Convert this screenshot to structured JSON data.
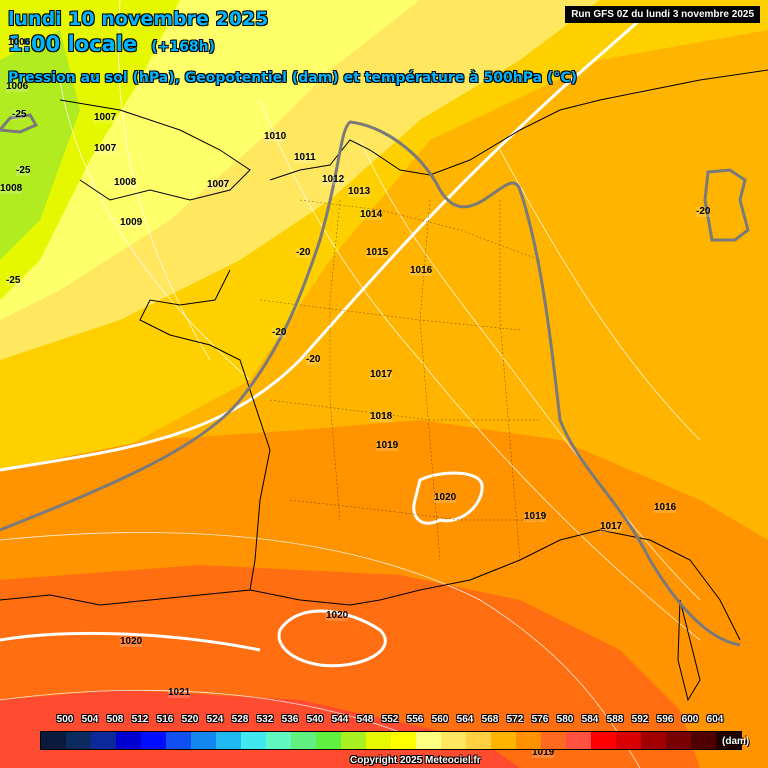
{
  "header": {
    "date_line": "lundi 10 novembre 2025",
    "time_line": "1:00 locale",
    "lead_time": "(+168h)",
    "subtitle": "Pression au sol (hPa), Geopotentiel (dam) et température à 500hPa (°C)",
    "run_info": "Run GFS 0Z du lundi 3 novembre 2025"
  },
  "pressure_labels": [
    "1006",
    "1006",
    "1007",
    "1008",
    "1008",
    "1009",
    "1007",
    "1010",
    "1011",
    "1012",
    "1013",
    "1014",
    "1015",
    "1016",
    "1017",
    "1018",
    "1019",
    "1020",
    "1019",
    "1017",
    "1016",
    "1020",
    "1020",
    "1021",
    "1019"
  ],
  "temperature_labels": [
    "-25",
    "-25",
    "-25",
    "-20",
    "-20",
    "-20",
    "-20"
  ],
  "colorbar": {
    "unit": "(dam)",
    "ticks": [
      "500",
      "504",
      "508",
      "512",
      "516",
      "520",
      "524",
      "528",
      "532",
      "536",
      "540",
      "544",
      "548",
      "552",
      "556",
      "560",
      "564",
      "568",
      "572",
      "576",
      "580",
      "584",
      "588",
      "592",
      "596",
      "600",
      "604"
    ],
    "colors": [
      "#0a1a3c",
      "#0a2a60",
      "#0a2a9c",
      "#0000d0",
      "#0010ff",
      "#1050f0",
      "#1488f0",
      "#20b8f0",
      "#40e8f0",
      "#60f8c0",
      "#60f080",
      "#60f040",
      "#a8f020",
      "#e8f800",
      "#ffff00",
      "#ffff80",
      "#ffe860",
      "#ffd040",
      "#ffb400",
      "#ff9000",
      "#ff6a20",
      "#ff5040",
      "#ff0000",
      "#d80000",
      "#a00000",
      "#780000",
      "#500000",
      "#200000"
    ]
  },
  "copyright": "Copyright 2025 Meteociel.fr"
}
